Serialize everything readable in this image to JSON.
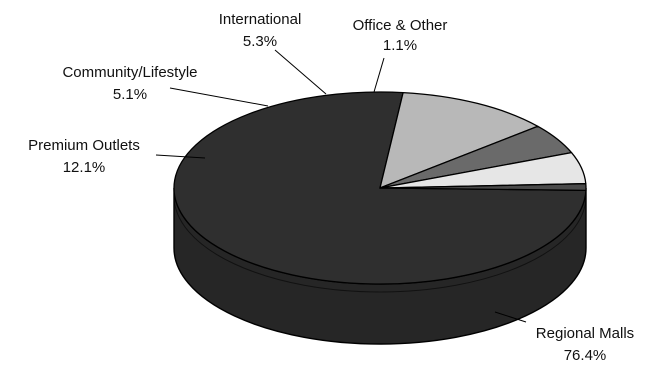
{
  "chart_data": {
    "type": "pie",
    "style": "3d",
    "slices": [
      {
        "label": "Regional Malls",
        "value": 76.4,
        "value_label": "76.4%",
        "color": "#2f2f2f"
      },
      {
        "label": "Premium Outlets",
        "value": 12.1,
        "value_label": "12.1%",
        "color": "#b8b8b8"
      },
      {
        "label": "Community/Lifestyle",
        "value": 5.1,
        "value_label": "5.1%",
        "color": "#6a6a6a"
      },
      {
        "label": "International",
        "value": 5.3,
        "value_label": "5.3%",
        "color": "#e6e6e6"
      },
      {
        "label": "Office & Other",
        "value": 1.1,
        "value_label": "1.1%",
        "color": "#4a4a4a"
      }
    ]
  }
}
